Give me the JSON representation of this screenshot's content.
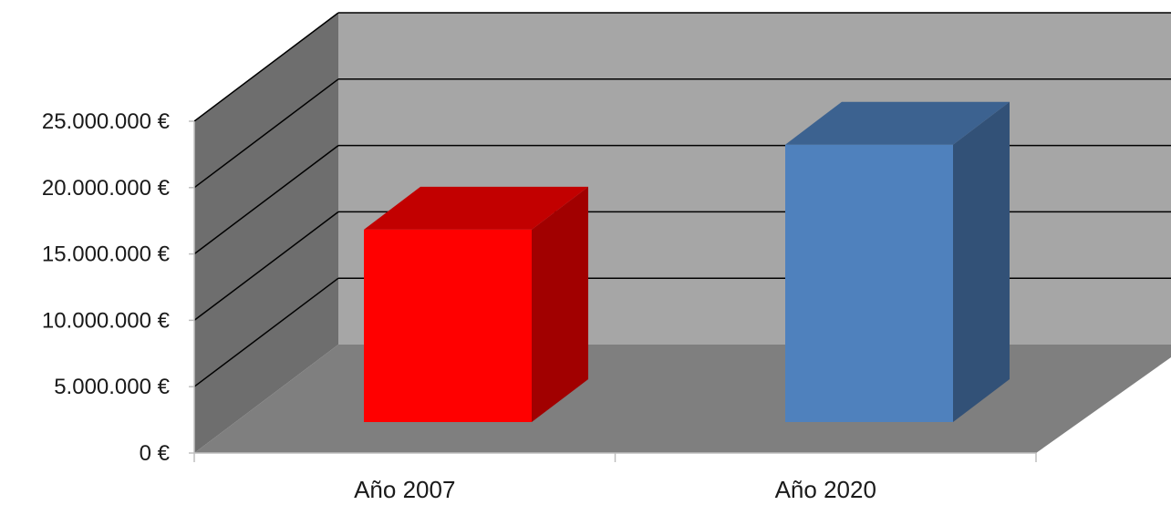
{
  "chart_data": {
    "type": "bar",
    "style": "3d",
    "categories": [
      "Año 2007",
      "Año 2020"
    ],
    "values": [
      14500000,
      20900000
    ],
    "bar_colors": [
      "#ff0000",
      "#4f81bd"
    ],
    "ylim": [
      0,
      25000000
    ],
    "y_ticks": [
      0,
      5000000,
      10000000,
      15000000,
      20000000,
      25000000
    ],
    "y_tick_labels": [
      "0 €",
      "5.000.000 €",
      "10.000.000 €",
      "15.000.000 €",
      "20.000.000 €",
      "25.000.000 €"
    ],
    "grid": true,
    "legend": "none",
    "wall_color": "#a6a6a6",
    "side_wall_color": "#6e6e6e",
    "floor_color": "#7f7f7f"
  }
}
